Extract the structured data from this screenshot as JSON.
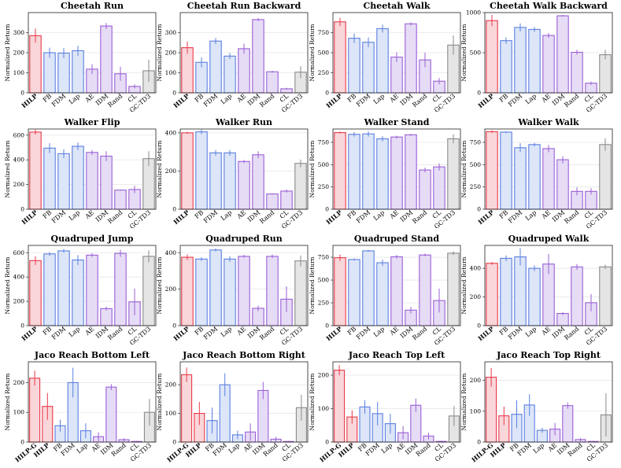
{
  "colors": {
    "hilp": {
      "fill": "#f9d6da",
      "stroke": "#e8394a"
    },
    "blue": {
      "fill": "#dde6f8",
      "stroke": "#5b7fe0"
    },
    "purple": {
      "fill": "#e6dcf6",
      "stroke": "#9a5fd6"
    },
    "gray": {
      "fill": "#e5e5e5",
      "stroke": "#8a8a8a"
    },
    "errorbar": {
      "hilp": "#e8394a",
      "blue": "#5b7fe0",
      "purple": "#9a5fd6",
      "gray": "#8a8a8a"
    }
  },
  "chart_data": [
    {
      "type": "bar",
      "title": "Cheetah Run",
      "ylabel": "Normalized Return",
      "ylim": [
        0,
        400
      ],
      "yticks": [
        0,
        100,
        200,
        300
      ],
      "categories": [
        "HILP",
        "FB",
        "FDM",
        "Lap",
        "AE",
        "IDM",
        "Rand",
        "CL",
        "GC-TD3"
      ],
      "bold": [
        "HILP"
      ],
      "groups": [
        "hilp",
        "blue",
        "blue",
        "blue",
        "purple",
        "purple",
        "purple",
        "purple",
        "gray"
      ],
      "values": [
        285,
        200,
        198,
        210,
        118,
        333,
        95,
        32,
        110
      ],
      "errors": [
        35,
        25,
        25,
        25,
        25,
        15,
        35,
        10,
        55
      ]
    },
    {
      "type": "bar",
      "title": "Cheetah Run Backward",
      "ylabel": "Normalized Return",
      "ylim": [
        0,
        400
      ],
      "yticks": [
        0,
        100,
        200,
        300
      ],
      "categories": [
        "HILP",
        "FB",
        "FDM",
        "Lap",
        "AE",
        "IDM",
        "Rand",
        "CL",
        "GC-TD3"
      ],
      "bold": [
        "HILP"
      ],
      "groups": [
        "hilp",
        "blue",
        "blue",
        "blue",
        "purple",
        "purple",
        "purple",
        "purple",
        "gray"
      ],
      "values": [
        225,
        152,
        258,
        183,
        220,
        365,
        105,
        20,
        103
      ],
      "errors": [
        30,
        25,
        15,
        15,
        25,
        8,
        5,
        5,
        30
      ]
    },
    {
      "type": "bar",
      "title": "Cheetah Walk",
      "ylabel": "Normalized Return",
      "ylim": [
        0,
        1000
      ],
      "yticks": [
        0,
        250,
        500,
        750
      ],
      "categories": [
        "HILP",
        "FB",
        "FDM",
        "Lap",
        "AE",
        "IDM",
        "Rand",
        "CL",
        "GC-TD3"
      ],
      "bold": [
        "HILP"
      ],
      "groups": [
        "hilp",
        "blue",
        "blue",
        "blue",
        "purple",
        "purple",
        "purple",
        "purple",
        "gray"
      ],
      "values": [
        885,
        680,
        630,
        800,
        445,
        860,
        410,
        145,
        595
      ],
      "errors": [
        50,
        60,
        60,
        50,
        60,
        20,
        90,
        40,
        120
      ]
    },
    {
      "type": "bar",
      "title": "Cheetah Walk Backward",
      "ylabel": "Normalized Return",
      "ylim": [
        0,
        1000
      ],
      "yticks": [
        0,
        500,
        1000
      ],
      "categories": [
        "HILP",
        "FB",
        "FDM",
        "Lap",
        "AE",
        "IDM",
        "Rand",
        "CL",
        "GC-TD3"
      ],
      "bold": [
        "HILP"
      ],
      "groups": [
        "hilp",
        "blue",
        "blue",
        "blue",
        "purple",
        "purple",
        "purple",
        "purple",
        "gray"
      ],
      "values": [
        900,
        650,
        815,
        790,
        715,
        960,
        505,
        120,
        475
      ],
      "errors": [
        70,
        40,
        50,
        30,
        30,
        10,
        30,
        20,
        60
      ]
    },
    {
      "type": "bar",
      "title": "Walker Flip",
      "ylabel": "Normalized Return",
      "ylim": [
        0,
        650
      ],
      "yticks": [
        0,
        200,
        400,
        600
      ],
      "categories": [
        "HILP",
        "FB",
        "FDM",
        "Lap",
        "AE",
        "IDM",
        "Rand",
        "CL",
        "GC-TD3"
      ],
      "bold": [
        "HILP"
      ],
      "groups": [
        "hilp",
        "blue",
        "blue",
        "blue",
        "purple",
        "purple",
        "purple",
        "purple",
        "gray"
      ],
      "values": [
        625,
        495,
        450,
        510,
        460,
        430,
        155,
        160,
        410
      ],
      "errors": [
        20,
        40,
        35,
        30,
        20,
        40,
        5,
        30,
        60
      ]
    },
    {
      "type": "bar",
      "title": "Walker Run",
      "ylabel": "Normalized Return",
      "ylim": [
        0,
        420
      ],
      "yticks": [
        0,
        200,
        400
      ],
      "categories": [
        "HILP",
        "FB",
        "FDM",
        "Lap",
        "AE",
        "IDM",
        "Rand",
        "CL",
        "GC-TD3"
      ],
      "bold": [
        "HILP"
      ],
      "groups": [
        "hilp",
        "blue",
        "blue",
        "blue",
        "purple",
        "purple",
        "purple",
        "purple",
        "gray"
      ],
      "values": [
        400,
        405,
        295,
        295,
        250,
        285,
        80,
        95,
        240
      ],
      "errors": [
        5,
        12,
        15,
        15,
        8,
        18,
        3,
        8,
        20
      ]
    },
    {
      "type": "bar",
      "title": "Walker Stand",
      "ylabel": "Normalized Return",
      "ylim": [
        0,
        900
      ],
      "yticks": [
        0,
        250,
        500,
        750
      ],
      "categories": [
        "HILP",
        "FB",
        "FDM",
        "Lap",
        "AE",
        "IDM",
        "Rand",
        "CL",
        "GC-TD3"
      ],
      "bold": [
        "HILP"
      ],
      "groups": [
        "hilp",
        "blue",
        "blue",
        "blue",
        "purple",
        "purple",
        "purple",
        "purple",
        "gray"
      ],
      "values": [
        860,
        840,
        845,
        790,
        810,
        835,
        440,
        475,
        790
      ],
      "errors": [
        10,
        25,
        30,
        30,
        15,
        10,
        25,
        40,
        50
      ]
    },
    {
      "type": "bar",
      "title": "Walker Walk",
      "ylabel": "Normalized Return",
      "ylim": [
        0,
        900
      ],
      "yticks": [
        0,
        250,
        500,
        750
      ],
      "categories": [
        "HILP",
        "FB",
        "FDM",
        "Lap",
        "AE",
        "IDM",
        "Rand",
        "CL",
        "GC-TD3"
      ],
      "bold": [
        "HILP"
      ],
      "groups": [
        "hilp",
        "blue",
        "blue",
        "blue",
        "purple",
        "purple",
        "purple",
        "purple",
        "gray"
      ],
      "values": [
        870,
        865,
        690,
        725,
        680,
        555,
        200,
        200,
        725
      ],
      "errors": [
        15,
        10,
        50,
        20,
        40,
        40,
        45,
        35,
        70
      ]
    },
    {
      "type": "bar",
      "title": "Quadruped Jump",
      "ylabel": "Normalized Return",
      "ylim": [
        0,
        660
      ],
      "yticks": [
        0,
        200,
        400,
        600
      ],
      "categories": [
        "HILP",
        "FB",
        "FDM",
        "Lap",
        "AE",
        "IDM",
        "Rand",
        "CL",
        "GC-TD3"
      ],
      "bold": [
        "HILP"
      ],
      "groups": [
        "hilp",
        "blue",
        "blue",
        "blue",
        "purple",
        "purple",
        "purple",
        "purple",
        "gray"
      ],
      "values": [
        535,
        590,
        615,
        540,
        580,
        140,
        595,
        195,
        570
      ],
      "errors": [
        35,
        15,
        15,
        40,
        15,
        15,
        30,
        110,
        50
      ]
    },
    {
      "type": "bar",
      "title": "Quadruped Run",
      "ylabel": "Normalized Return",
      "ylim": [
        0,
        440
      ],
      "yticks": [
        0,
        200,
        400
      ],
      "categories": [
        "HILP",
        "FB",
        "FDM",
        "Lap",
        "AE",
        "IDM",
        "Rand",
        "CL",
        "GC-TD3"
      ],
      "bold": [
        "HILP"
      ],
      "groups": [
        "hilp",
        "blue",
        "blue",
        "blue",
        "purple",
        "purple",
        "purple",
        "purple",
        "gray"
      ],
      "values": [
        375,
        365,
        415,
        365,
        380,
        95,
        380,
        145,
        355
      ],
      "errors": [
        15,
        10,
        8,
        15,
        8,
        15,
        10,
        70,
        30
      ]
    },
    {
      "type": "bar",
      "title": "Quadruped Stand",
      "ylabel": "Normalized Return",
      "ylim": [
        0,
        880
      ],
      "yticks": [
        0,
        250,
        500,
        750
      ],
      "categories": [
        "HILP",
        "FB",
        "FDM",
        "Lap",
        "AE",
        "IDM",
        "Rand",
        "CL",
        "GC-TD3"
      ],
      "bold": [
        "HILP"
      ],
      "groups": [
        "hilp",
        "blue",
        "blue",
        "blue",
        "purple",
        "purple",
        "purple",
        "purple",
        "gray"
      ],
      "values": [
        745,
        725,
        820,
        690,
        755,
        170,
        775,
        275,
        795
      ],
      "errors": [
        35,
        10,
        10,
        35,
        20,
        35,
        15,
        130,
        20
      ]
    },
    {
      "type": "bar",
      "title": "Quadruped Walk",
      "ylabel": "Normalized Return",
      "ylim": [
        0,
        560
      ],
      "yticks": [
        0,
        200,
        400
      ],
      "categories": [
        "HILP",
        "FB",
        "FDM",
        "Lap",
        "AE",
        "IDM",
        "Rand",
        "CL",
        "GC-TD3"
      ],
      "bold": [
        "HILP"
      ],
      "groups": [
        "hilp",
        "blue",
        "blue",
        "blue",
        "purple",
        "purple",
        "purple",
        "purple",
        "gray"
      ],
      "values": [
        435,
        470,
        480,
        400,
        430,
        85,
        410,
        160,
        410
      ],
      "errors": [
        10,
        20,
        60,
        20,
        70,
        10,
        20,
        60,
        15
      ]
    },
    {
      "type": "bar",
      "title": "Jaco Reach Bottom Left",
      "ylabel": "Normalized Return",
      "ylim": [
        0,
        270
      ],
      "yticks": [
        0,
        100,
        200
      ],
      "categories": [
        "HILP-G",
        "HILP",
        "FB",
        "FDM",
        "Lap",
        "AE",
        "IDM",
        "Rand",
        "CL",
        "GC-TD3"
      ],
      "bold": [
        "HILP-G",
        "HILP"
      ],
      "groups": [
        "hilp",
        "hilp",
        "blue",
        "blue",
        "blue",
        "purple",
        "purple",
        "purple",
        "purple",
        "gray"
      ],
      "values": [
        215,
        120,
        55,
        200,
        38,
        18,
        185,
        8,
        2,
        100
      ],
      "errors": [
        25,
        45,
        20,
        50,
        25,
        15,
        10,
        5,
        2,
        45
      ]
    },
    {
      "type": "bar",
      "title": "Jaco Reach Bottom Right",
      "ylabel": "Normalized Return",
      "ylim": [
        0,
        280
      ],
      "yticks": [
        0,
        100,
        200
      ],
      "categories": [
        "HILP-G",
        "HILP",
        "FB",
        "FDM",
        "Lap",
        "AE",
        "IDM",
        "Rand",
        "CL",
        "GC-TD3"
      ],
      "bold": [
        "HILP-G",
        "HILP"
      ],
      "groups": [
        "hilp",
        "hilp",
        "blue",
        "blue",
        "blue",
        "purple",
        "purple",
        "purple",
        "purple",
        "gray"
      ],
      "values": [
        235,
        100,
        75,
        200,
        25,
        35,
        180,
        10,
        2,
        120
      ],
      "errors": [
        25,
        40,
        45,
        40,
        15,
        30,
        30,
        8,
        2,
        45
      ]
    },
    {
      "type": "bar",
      "title": "Jaco Reach Top Left",
      "ylabel": "Normalized Return",
      "ylim": [
        0,
        240
      ],
      "yticks": [
        0,
        100,
        200
      ],
      "categories": [
        "HILP-G",
        "HILP",
        "FB",
        "FDM",
        "Lap",
        "AE",
        "IDM",
        "Rand",
        "CL",
        "GC-TD3"
      ],
      "bold": [
        "HILP-G",
        "HILP"
      ],
      "groups": [
        "hilp",
        "hilp",
        "blue",
        "blue",
        "blue",
        "purple",
        "purple",
        "purple",
        "purple",
        "gray"
      ],
      "values": [
        215,
        75,
        105,
        85,
        55,
        28,
        110,
        18,
        2,
        78
      ],
      "errors": [
        15,
        20,
        20,
        35,
        30,
        20,
        20,
        10,
        2,
        30
      ]
    },
    {
      "type": "bar",
      "title": "Jaco Reach Top Right",
      "ylabel": "Normalized Return",
      "ylim": [
        0,
        260
      ],
      "yticks": [
        0,
        100,
        200
      ],
      "categories": [
        "HILP-G",
        "HILP",
        "FB",
        "FDM",
        "Lap",
        "AE",
        "IDM",
        "Rand",
        "CL",
        "GC-TD3"
      ],
      "bold": [
        "HILP-G",
        "HILP"
      ],
      "groups": [
        "hilp",
        "hilp",
        "blue",
        "blue",
        "blue",
        "purple",
        "purple",
        "purple",
        "purple",
        "gray"
      ],
      "values": [
        210,
        85,
        90,
        120,
        38,
        42,
        118,
        8,
        2,
        88
      ],
      "errors": [
        30,
        30,
        45,
        35,
        8,
        20,
        10,
        5,
        2,
        70
      ]
    }
  ]
}
